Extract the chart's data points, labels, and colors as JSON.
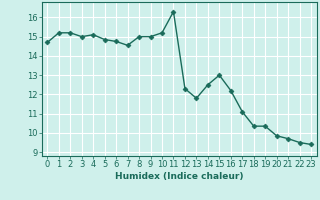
{
  "x": [
    0,
    1,
    2,
    3,
    4,
    5,
    6,
    7,
    8,
    9,
    10,
    11,
    12,
    13,
    14,
    15,
    16,
    17,
    18,
    19,
    20,
    21,
    22,
    23
  ],
  "y": [
    14.7,
    15.2,
    15.2,
    15.0,
    15.1,
    14.85,
    14.75,
    14.55,
    15.0,
    15.0,
    15.2,
    16.3,
    12.3,
    11.8,
    12.5,
    13.0,
    12.2,
    11.1,
    10.35,
    10.35,
    9.85,
    9.7,
    9.5,
    9.4
  ],
  "line_color": "#1a6b5a",
  "marker": "D",
  "markersize": 2.5,
  "linewidth": 1.0,
  "xlabel": "Humidex (Indice chaleur)",
  "xlim": [
    -0.5,
    23.5
  ],
  "ylim": [
    8.8,
    16.8
  ],
  "yticks": [
    9,
    10,
    11,
    12,
    13,
    14,
    15,
    16
  ],
  "xticks": [
    0,
    1,
    2,
    3,
    4,
    5,
    6,
    7,
    8,
    9,
    10,
    11,
    12,
    13,
    14,
    15,
    16,
    17,
    18,
    19,
    20,
    21,
    22,
    23
  ],
  "bg_color": "#cff0eb",
  "grid_color": "#ffffff",
  "tick_color": "#1a6b5a",
  "label_color": "#1a6b5a",
  "label_fontsize": 6.5,
  "tick_fontsize": 6
}
